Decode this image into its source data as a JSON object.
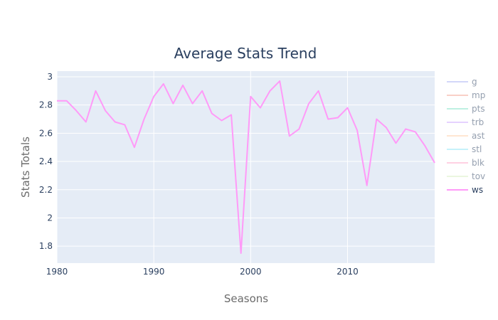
{
  "chart_data": {
    "type": "line",
    "title": "Average Stats Trend",
    "xlabel": "Seasons",
    "ylabel": "Stats Totals",
    "xlim": [
      1980,
      2019
    ],
    "ylim": [
      1.68,
      3.04
    ],
    "x_ticks": [
      "1980",
      "1990",
      "2000",
      "2010"
    ],
    "y_ticks": [
      "1.8",
      "2",
      "2.2",
      "2.4",
      "2.6",
      "2.8",
      "3"
    ],
    "grid": true,
    "legend_position": "right",
    "series": [
      {
        "name": "g",
        "color": "#a9b0f5",
        "visible": false,
        "values": []
      },
      {
        "name": "mp",
        "color": "#f5a391",
        "visible": false,
        "values": []
      },
      {
        "name": "pts",
        "color": "#7fe3c6",
        "visible": false,
        "values": []
      },
      {
        "name": "trb",
        "color": "#cfa6ff",
        "visible": false,
        "values": []
      },
      {
        "name": "ast",
        "color": "#ffcfa6",
        "visible": false,
        "values": []
      },
      {
        "name": "stl",
        "color": "#8fe4f7",
        "visible": false,
        "values": []
      },
      {
        "name": "blk",
        "color": "#ffa5c8",
        "visible": false,
        "values": []
      },
      {
        "name": "tov",
        "color": "#d9efc0",
        "visible": false,
        "values": []
      },
      {
        "name": "ws",
        "color": "#ff9af8",
        "visible": true,
        "x": [
          1980,
          1981,
          1982,
          1983,
          1984,
          1985,
          1986,
          1987,
          1988,
          1989,
          1990,
          1991,
          1992,
          1993,
          1994,
          1995,
          1996,
          1997,
          1998,
          1999,
          2000,
          2001,
          2002,
          2003,
          2004,
          2005,
          2006,
          2007,
          2008,
          2009,
          2010,
          2011,
          2012,
          2013,
          2014,
          2015,
          2016,
          2017,
          2018,
          2019
        ],
        "values": [
          2.83,
          2.83,
          2.76,
          2.68,
          2.9,
          2.76,
          2.68,
          2.66,
          2.5,
          2.7,
          2.86,
          2.95,
          2.81,
          2.94,
          2.81,
          2.9,
          2.74,
          2.69,
          2.73,
          1.75,
          2.86,
          2.78,
          2.9,
          2.97,
          2.58,
          2.63,
          2.81,
          2.9,
          2.7,
          2.71,
          2.78,
          2.62,
          2.23,
          2.7,
          2.64,
          2.53,
          2.63,
          2.61,
          2.51,
          2.39
        ]
      }
    ]
  }
}
